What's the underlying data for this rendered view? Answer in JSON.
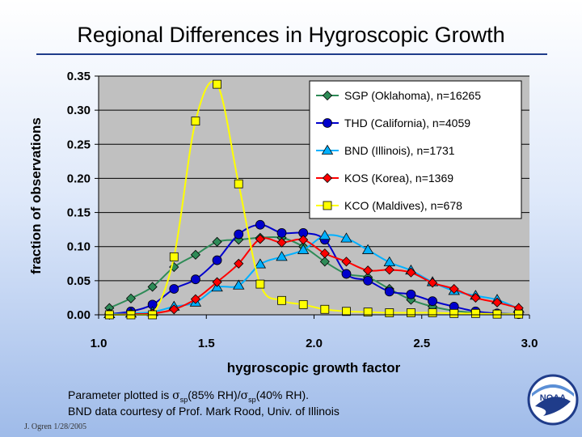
{
  "title": "Regional Differences in Hygroscopic Growth",
  "footnote": {
    "line1_prefix": "Parameter plotted is ",
    "sigma1": "σ",
    "sub1": "sp",
    "mid": "(85% RH)/",
    "sigma2": "σ",
    "sub2": "sp",
    "end": "(40% RH).",
    "line2": "BND data courtesy of Prof. Mark Rood, Univ. of Illinois"
  },
  "credit": "J. Ogren  1/28/2005",
  "logo": {
    "text": "NOAA",
    "icon": "noaa-logo"
  },
  "colors": {
    "plot_bg": "#c0c0c0",
    "grid": "#000000"
  },
  "chart_data": {
    "type": "line",
    "xlabel": "hygroscopic growth factor",
    "ylabel": "fraction of observations",
    "xlim": [
      1.0,
      3.0
    ],
    "ylim": [
      0.0,
      0.35
    ],
    "xticks": [
      "1.0",
      "1.5",
      "2.0",
      "2.5",
      "3.0"
    ],
    "yticks": [
      "0.00",
      "0.05",
      "0.10",
      "0.15",
      "0.20",
      "0.25",
      "0.30",
      "0.35"
    ],
    "grid": "horizontal",
    "legend_position": "top-right",
    "series": [
      {
        "name": "SGP (Oklahoma), n=16265",
        "color": "#2e8b57",
        "marker": "diamond",
        "x": [
          1.05,
          1.15,
          1.25,
          1.35,
          1.45,
          1.55,
          1.65,
          1.75,
          1.85,
          1.95,
          2.05,
          2.15,
          2.25,
          2.35,
          2.45,
          2.55,
          2.65,
          2.75,
          2.85,
          2.95
        ],
        "y": [
          0.01,
          0.024,
          0.041,
          0.07,
          0.088,
          0.107,
          0.11,
          0.113,
          0.113,
          0.1,
          0.078,
          0.06,
          0.055,
          0.038,
          0.022,
          0.012,
          0.006,
          0.003,
          0.002,
          0.001
        ]
      },
      {
        "name": "THD (California), n=4059",
        "color": "#0000cc",
        "marker": "circle",
        "x": [
          1.05,
          1.15,
          1.25,
          1.35,
          1.45,
          1.55,
          1.65,
          1.75,
          1.85,
          1.95,
          2.05,
          2.15,
          2.25,
          2.35,
          2.45,
          2.55,
          2.65,
          2.75,
          2.85,
          2.95
        ],
        "y": [
          0.001,
          0.005,
          0.015,
          0.038,
          0.052,
          0.08,
          0.118,
          0.132,
          0.12,
          0.12,
          0.11,
          0.06,
          0.05,
          0.034,
          0.03,
          0.02,
          0.012,
          0.005,
          0.002,
          0.001
        ]
      },
      {
        "name": "BND (Illinois), n=1731",
        "color": "#00b0ff",
        "marker": "triangle",
        "x": [
          1.05,
          1.15,
          1.25,
          1.35,
          1.45,
          1.55,
          1.65,
          1.75,
          1.85,
          1.95,
          2.05,
          2.15,
          2.25,
          2.35,
          2.45,
          2.55,
          2.65,
          2.75,
          2.85,
          2.95
        ],
        "y": [
          0.001,
          0.002,
          0.004,
          0.012,
          0.018,
          0.04,
          0.043,
          0.074,
          0.085,
          0.095,
          0.116,
          0.112,
          0.095,
          0.077,
          0.065,
          0.048,
          0.035,
          0.028,
          0.022,
          0.009
        ]
      },
      {
        "name": "KOS (Korea), n=1369",
        "color": "#ff0000",
        "marker": "diamond",
        "x": [
          1.05,
          1.15,
          1.25,
          1.35,
          1.45,
          1.55,
          1.65,
          1.75,
          1.85,
          1.95,
          2.05,
          2.15,
          2.25,
          2.35,
          2.45,
          2.55,
          2.65,
          2.75,
          2.85,
          2.95
        ],
        "y": [
          0.0,
          0.001,
          0.002,
          0.008,
          0.023,
          0.048,
          0.075,
          0.111,
          0.106,
          0.11,
          0.09,
          0.078,
          0.065,
          0.066,
          0.062,
          0.047,
          0.038,
          0.025,
          0.018,
          0.01
        ]
      },
      {
        "name": "KCO (Maldives), n=678",
        "color": "#ffff00",
        "marker": "square",
        "x": [
          1.05,
          1.15,
          1.25,
          1.35,
          1.45,
          1.55,
          1.65,
          1.75,
          1.85,
          1.95,
          2.05,
          2.15,
          2.25,
          2.35,
          2.45,
          2.55,
          2.65,
          2.75,
          2.85,
          2.95
        ],
        "y": [
          0.0,
          0.0,
          0.0,
          0.085,
          0.284,
          0.338,
          0.192,
          0.045,
          0.021,
          0.015,
          0.008,
          0.005,
          0.004,
          0.003,
          0.003,
          0.003,
          0.002,
          0.002,
          0.001,
          0.001
        ]
      }
    ]
  }
}
